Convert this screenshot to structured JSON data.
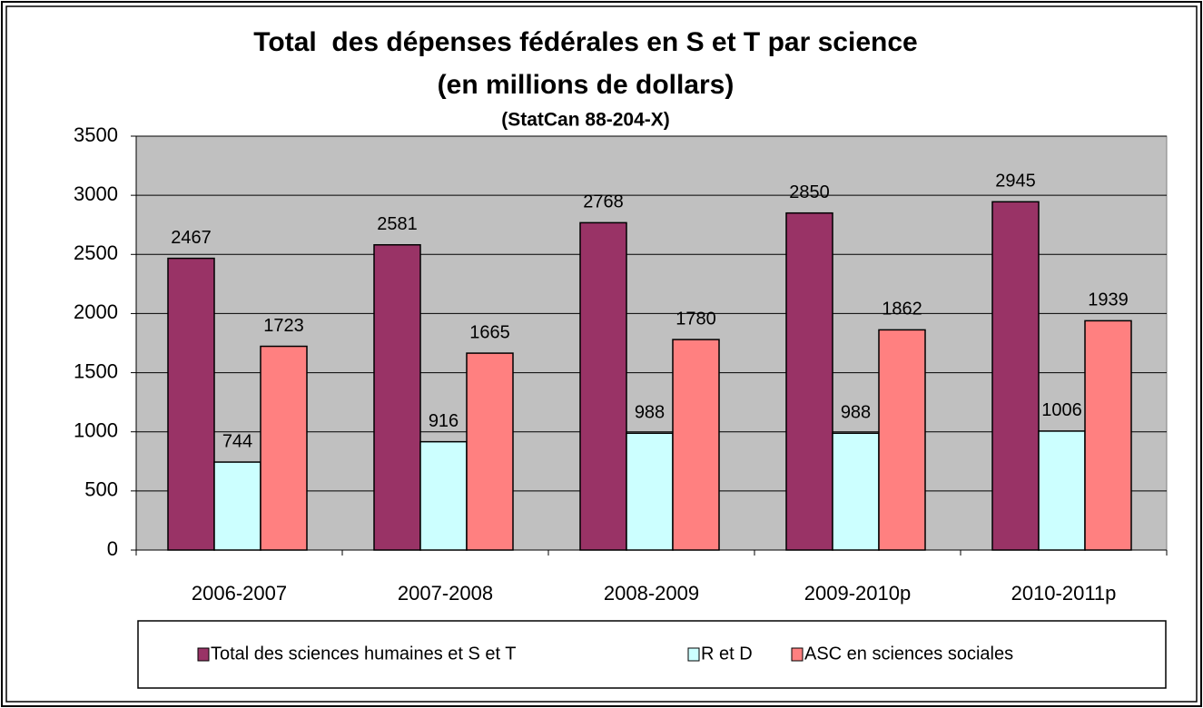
{
  "chart_data": {
    "type": "bar",
    "title": "Total  des dépenses fédérales en S et T par science",
    "subtitle": "(en millions de dollars)",
    "source": "(StatCan 88-204-X)",
    "categories": [
      "2006-2007",
      "2007-2008",
      "2008-2009",
      "2009-2010p",
      "2010-2011p"
    ],
    "series": [
      {
        "name": "Total des sciences humaines et S et T",
        "color": "#993366",
        "values": [
          2467,
          2581,
          2768,
          2850,
          2945
        ]
      },
      {
        "name": "R et D",
        "color": "#ccffff",
        "values": [
          744,
          916,
          988,
          988,
          1006
        ]
      },
      {
        "name": "ASC en sciences sociales",
        "color": "#ff8080",
        "values": [
          1723,
          1665,
          1780,
          1862,
          1939
        ]
      }
    ],
    "ylim": [
      0,
      3500
    ],
    "yticks": [
      0,
      500,
      1000,
      1500,
      2000,
      2500,
      3000,
      3500
    ],
    "grid": true,
    "legend": "bottom",
    "plot_background": "#c0c0c0"
  }
}
